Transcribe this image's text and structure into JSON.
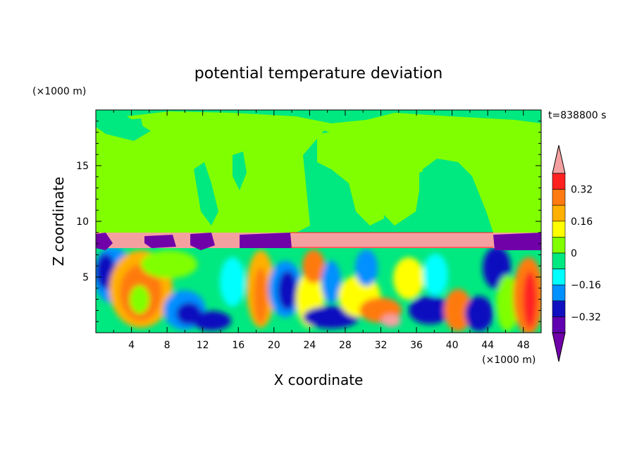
{
  "chart_data": {
    "type": "heatmap",
    "title": "potential temperature deviation",
    "xlabel": "X coordinate",
    "ylabel": "Z coordinate",
    "x_unit": "(×1000 m)",
    "y_unit": "(×1000 m)",
    "time_label": "t=838800 s",
    "xlim": [
      0,
      50
    ],
    "ylim": [
      0,
      20
    ],
    "x_ticks": [
      4,
      8,
      12,
      16,
      20,
      24,
      28,
      32,
      36,
      40,
      44,
      48
    ],
    "y_ticks": [
      5,
      10,
      15
    ],
    "colorbar": {
      "levels": [
        -0.4,
        -0.32,
        -0.24,
        -0.16,
        -0.08,
        0,
        0.08,
        0.16,
        0.24,
        0.32,
        0.4
      ],
      "labeled_levels": [
        0.32,
        0.16,
        0,
        -0.16,
        -0.32
      ],
      "colors_high_to_low": [
        "#f5a0a0",
        "#ff2020",
        "#ff7a10",
        "#ffb000",
        "#ffff00",
        "#80ff00",
        "#00e880",
        "#00ffff",
        "#0090ff",
        "#1010c0",
        "#6000b0",
        "#7000a8"
      ],
      "extend": "both"
    },
    "regions": {
      "upper_green_band_z": [
        9,
        20
      ],
      "pink_layer_z": [
        7.6,
        9.0
      ],
      "purple_patches_z": [
        7.6,
        9.0
      ],
      "turbulent_lower_layer_z": [
        0,
        7.6
      ]
    },
    "grid": false,
    "legend": "colorbar-right"
  }
}
